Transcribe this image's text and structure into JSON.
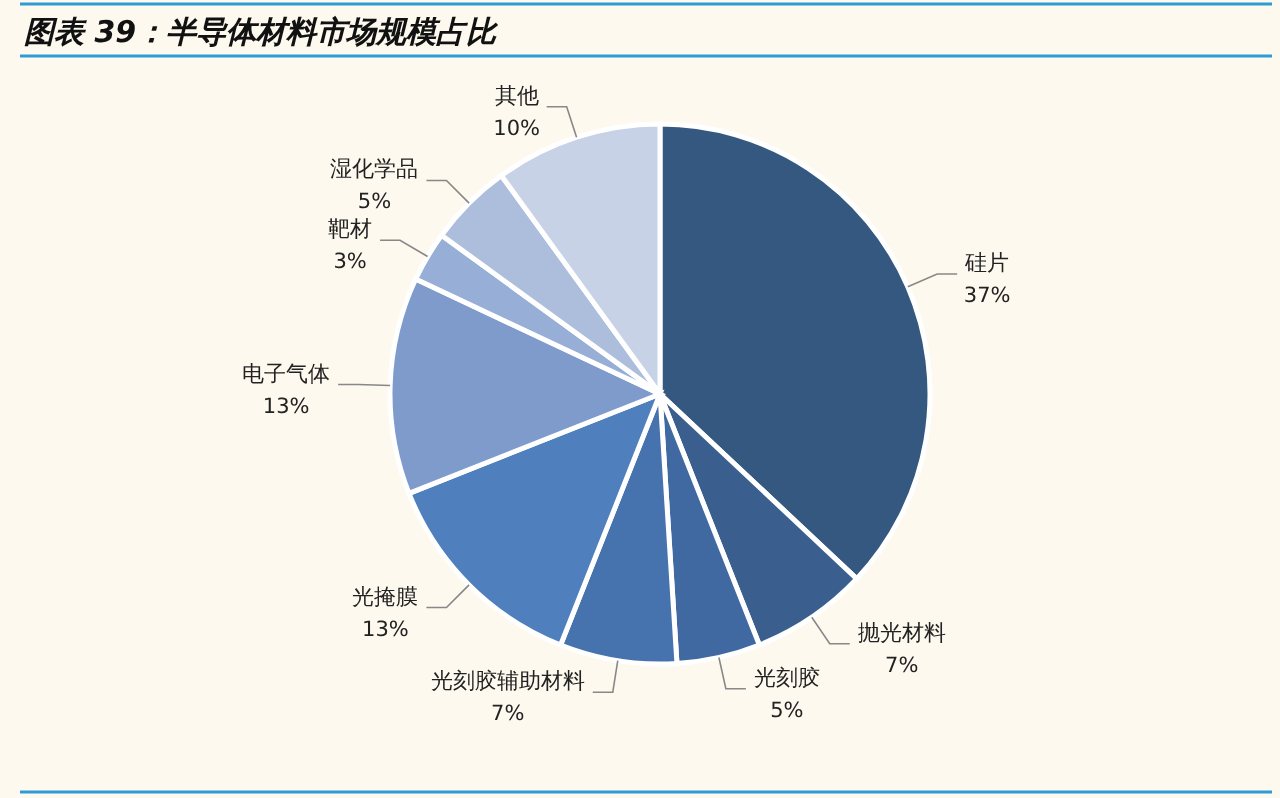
{
  "chart_data": {
    "type": "pie",
    "title": "图表 39：半导体材料市场规模占比",
    "categories": [
      "硅片",
      "抛光材料",
      "光刻胶",
      "光刻胶辅助材料",
      "光掩膜",
      "电子气体",
      "靶材",
      "湿化学品",
      "其他"
    ],
    "values": [
      37,
      7,
      5,
      7,
      13,
      13,
      3,
      5,
      10
    ],
    "value_labels": [
      "37%",
      "7%",
      "5%",
      "7%",
      "13%",
      "13%",
      "3%",
      "5%",
      "10%"
    ],
    "colors": [
      "#34587f",
      "#3a5f8e",
      "#3f69a0",
      "#4673ae",
      "#4f80bd",
      "#7e9bcb",
      "#97aed6",
      "#adbedc",
      "#c8d2e6"
    ]
  }
}
